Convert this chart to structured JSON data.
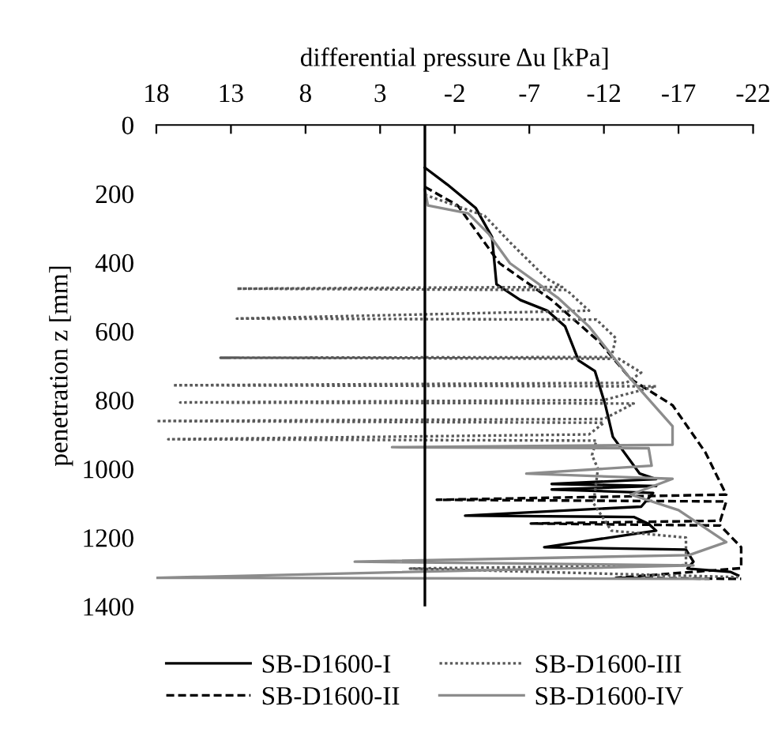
{
  "chart_data": {
    "type": "line",
    "xlabel": "differential pressure Δu [kPa]",
    "ylabel": "penetration z [mm]",
    "xlim": [
      18,
      -22
    ],
    "xticks": [
      18,
      13,
      8,
      3,
      -2,
      -7,
      -12,
      -17,
      -22
    ],
    "ylim": [
      1400,
      0
    ],
    "yticks": [
      0,
      200,
      400,
      600,
      800,
      1000,
      1200,
      1400
    ],
    "grid": false,
    "legend": "bottom",
    "marker": "none",
    "ref_lines": [
      {
        "axis": "x",
        "value": 0,
        "color": "#000000",
        "line_style": "solid"
      }
    ],
    "series": [
      {
        "name": "SB-D1600-I",
        "color": "#000000",
        "line_style": "solid",
        "x": [
          0,
          -1.5,
          -3.4,
          -4.5,
          -4.8,
          -6.4,
          -8.2,
          -9.4,
          -10.3,
          -11.4,
          -12.1,
          -12.6,
          -14.4,
          -15.5,
          -8.5,
          -15.5,
          -8.5,
          -15.3,
          -14.5,
          -2.7,
          -14,
          -15,
          -15.5,
          -8,
          -17.5,
          -18,
          -17.6,
          -20.5,
          -21
        ],
        "values": [
          124,
          173,
          241,
          326,
          463,
          509,
          540,
          586,
          685,
          716,
          815,
          907,
          1014,
          1030,
          1044,
          1050,
          1060,
          1070,
          1110,
          1136,
          1140,
          1160,
          1180,
          1228,
          1235,
          1270,
          1290,
          1300,
          1310
        ]
      },
      {
        "name": "SB-D1600-II",
        "color": "#000000",
        "line_style": "dashed",
        "x": [
          0,
          -2.2,
          -5,
          -8.5,
          -11.7,
          -13.8,
          -16.6,
          -18.8,
          -19.5,
          -20.2,
          -0.8,
          -20.2,
          -19.8,
          -7.1,
          -19.8,
          -21.2,
          -21.2,
          -12.8,
          -21.2
        ],
        "values": [
          180,
          234,
          402,
          509,
          631,
          739,
          815,
          952,
          1014,
          1075,
          1090,
          1095,
          1151,
          1159,
          1165,
          1228,
          1289,
          1317,
          1320
        ]
      },
      {
        "name": "SB-D1600-III",
        "color": "#595959",
        "line_style": "dotted",
        "x": [
          0,
          -4,
          -5.7,
          -8.2,
          -9.2,
          12.6,
          -9.5,
          -11,
          12.6,
          -11.5,
          -12.8,
          -12.5,
          13.7,
          -13,
          -14.5,
          -13.5,
          16.9,
          -15.5,
          -12,
          16.4,
          -14,
          -12,
          18,
          -12,
          -11,
          17.2,
          -11.5,
          -11.2,
          -11.6,
          -11.3,
          -12.5,
          -17.5,
          -17.5,
          1,
          -21
        ],
        "values": [
          203,
          264,
          341,
          448,
          471,
          476,
          480,
          540,
          563,
          566,
          620,
          675,
          677,
          680,
          720,
          750,
          757,
          760,
          800,
          807,
          810,
          855,
          861,
          866,
          900,
          914,
          918,
          960,
          1000,
          1100,
          1180,
          1200,
          1280,
          1290,
          1315
        ]
      },
      {
        "name": "SB-D1600-IV",
        "color": "#8c8c8c",
        "line_style": "solid",
        "x": [
          0,
          -0.2,
          -2.9,
          -4.3,
          -5.7,
          -8.9,
          -11,
          -13.8,
          -16.6,
          -16.6,
          2.2,
          -15,
          -15.2,
          -6.8,
          -16.6,
          -13.8,
          -17,
          -20.2,
          -17.7,
          4.7,
          -18,
          18,
          -19
        ],
        "values": [
          188,
          234,
          257,
          318,
          402,
          502,
          586,
          739,
          876,
          930,
          937,
          940,
          991,
          1014,
          1029,
          1075,
          1120,
          1213,
          1251,
          1270,
          1281,
          1317,
          1320
        ]
      }
    ]
  }
}
